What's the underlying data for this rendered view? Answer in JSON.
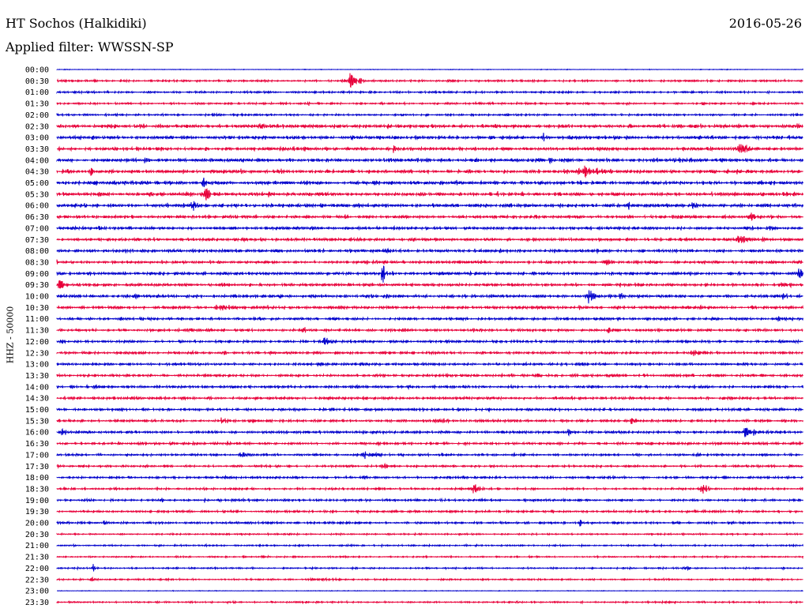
{
  "header": {
    "station": "HT Sochos (Halkidiki)",
    "date": "2016-05-26",
    "filter": "Applied filter: WWSSN-SP"
  },
  "chart_data": {
    "type": "line",
    "title": "HT Sochos (Halkidiki)",
    "subtitle": "Applied filter: WWSSN-SP",
    "date": "2016-05-26",
    "ylabel": "HHZ - 50000",
    "xlabel": "",
    "row_interval_minutes": 30,
    "tick_labels": [
      "00:00",
      "00:30",
      "01:00",
      "01:30",
      "02:00",
      "02:30",
      "03:00",
      "03:30",
      "04:00",
      "04:30",
      "05:00",
      "05:30",
      "06:00",
      "06:30",
      "07:00",
      "07:30",
      "08:00",
      "08:30",
      "09:00",
      "09:30",
      "10:00",
      "10:30",
      "11:00",
      "11:30",
      "12:00",
      "12:30",
      "13:00",
      "13:30",
      "14:00",
      "14:30",
      "15:00",
      "15:30",
      "16:00",
      "16:30",
      "17:00",
      "17:30",
      "18:00",
      "18:30",
      "19:00",
      "19:30",
      "20:00",
      "20:30",
      "21:00",
      "21:30",
      "22:00",
      "22:30",
      "23:00",
      "23:30"
    ],
    "series_colors": [
      "#0000cc",
      "#e8003a"
    ],
    "color_pattern": "alternating rows, starting blue at 00:00",
    "grid": false,
    "legend": "none"
  }
}
